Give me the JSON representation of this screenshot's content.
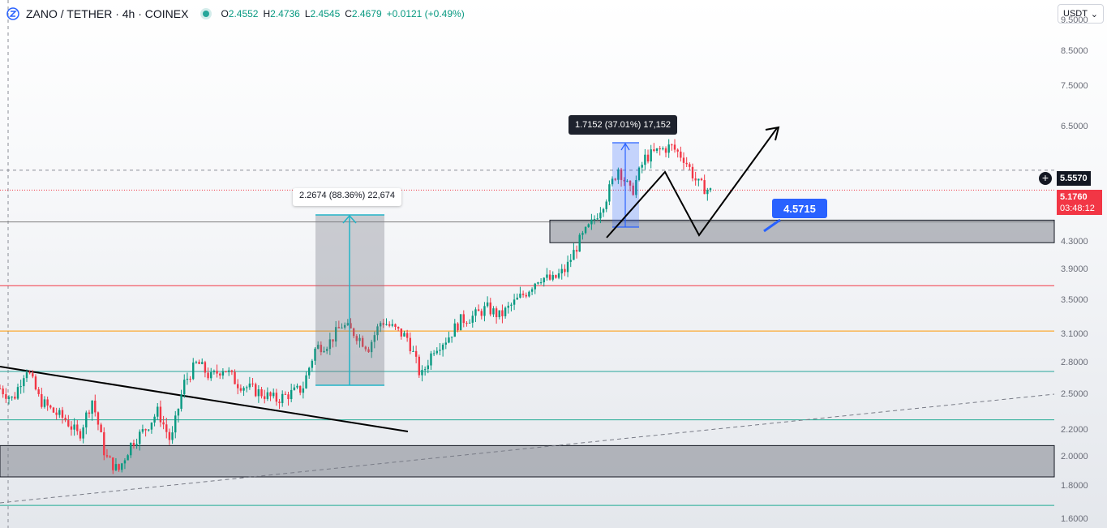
{
  "header": {
    "symbol": "ZANO / TETHER · 4h · COINEX",
    "ohlc": [
      {
        "key": "O",
        "value": "2.4552"
      },
      {
        "key": "H",
        "value": "2.4736"
      },
      {
        "key": "L",
        "value": "2.4545"
      },
      {
        "key": "C",
        "value": "2.4679"
      }
    ],
    "change": "+0.0121 (+0.49%)",
    "currency": "USDT"
  },
  "price_axis": {
    "ticks": [
      "9.5000",
      "8.5000",
      "7.5000",
      "6.5000",
      "4.3000",
      "3.9000",
      "3.5000",
      "3.1000",
      "2.8000",
      "2.5000",
      "2.2000",
      "2.0000",
      "1.8000",
      "1.6000"
    ],
    "scale": "log"
  },
  "price_labels": {
    "crosshair_price": "5.5570",
    "last_price": "5.1760",
    "countdown": "03:48:12"
  },
  "annotations": {
    "measure_left": "2.2674 (88.36%) 22,674",
    "measure_right": "1.7152 (37.01%) 17,152",
    "callout": "4.5715"
  },
  "colors": {
    "up": "#089981",
    "down": "#f23645",
    "last_price": "#f23645",
    "callout": "#2962ff",
    "level_red": "#f23645",
    "level_orange": "#ff9800",
    "level_green": "#26a69a",
    "level_teal": "#22ab94"
  },
  "chart_data": {
    "type": "candlestick",
    "title": "ZANO / TETHER · 4h · COINEX",
    "y_scale": "log",
    "y_range": [
      1.55,
      10.2
    ],
    "horizontal_levels": [
      {
        "price": 4.62,
        "color": "#808080"
      },
      {
        "price": 3.68,
        "color": "#f23645"
      },
      {
        "price": 3.13,
        "color": "#ff9800"
      },
      {
        "price": 2.71,
        "color": "#26a69a"
      },
      {
        "price": 2.28,
        "color": "#22ab94"
      },
      {
        "price": 1.68,
        "color": "#22ab94"
      }
    ],
    "zones": [
      {
        "from": 4.29,
        "to": 4.65
      },
      {
        "from": 1.86,
        "to": 2.08
      }
    ],
    "path": [
      2.55,
      2.45,
      2.75,
      2.45,
      2.35,
      2.28,
      2.15,
      2.45,
      2.0,
      1.9,
      2.1,
      2.2,
      2.35,
      2.1,
      2.6,
      2.8,
      2.65,
      2.75,
      2.6,
      2.55,
      2.5,
      2.45,
      2.5,
      2.55,
      2.95,
      3.0,
      3.2,
      3.1,
      2.95,
      3.25,
      3.15,
      3.05,
      2.65,
      2.95,
      3.05,
      3.25,
      3.3,
      3.4,
      3.3,
      3.45,
      3.6,
      3.8,
      3.75,
      3.9,
      4.3,
      4.6,
      5.0,
      5.6,
      5.1,
      5.8,
      5.95,
      6.05,
      5.8,
      5.3,
      5.15
    ]
  }
}
